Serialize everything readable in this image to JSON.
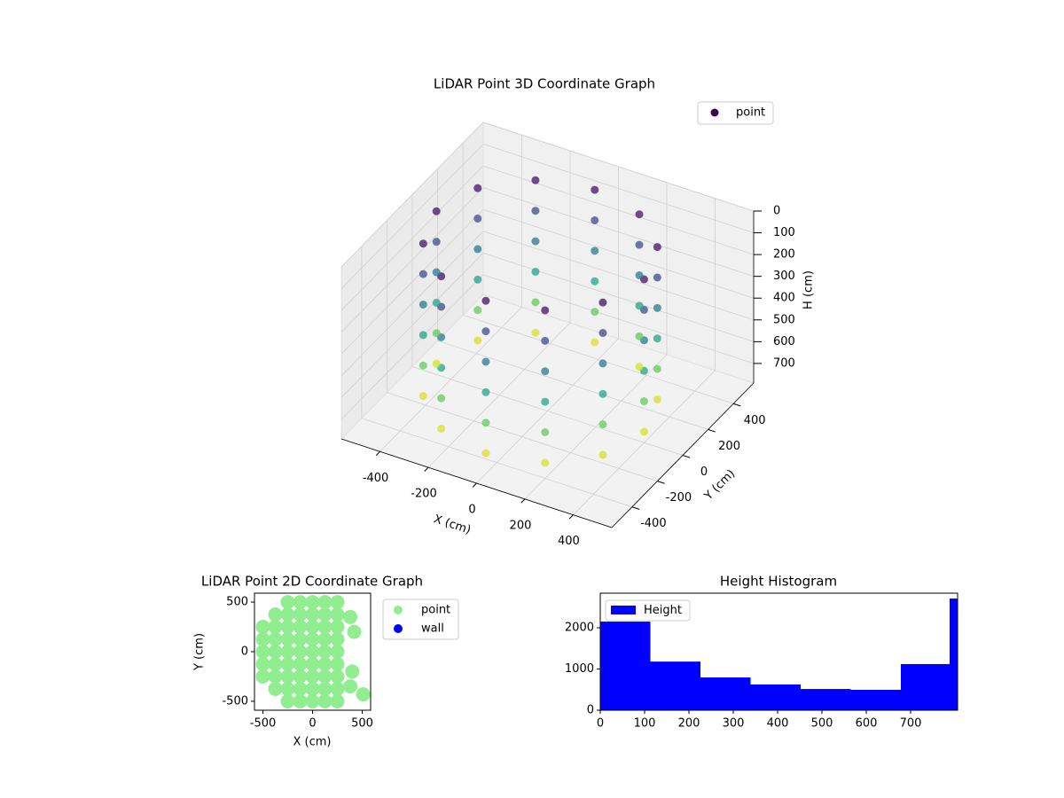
{
  "chart_data": [
    {
      "type": "scatter3d",
      "title": "LiDAR Point 3D Coordinate Graph",
      "xlabel": "X (cm)",
      "ylabel": "Y (cm)",
      "zlabel": "H (cm)",
      "legend": "upper right",
      "series_name": "point",
      "colormap": "viridis",
      "z_inverted": true,
      "xlim": [
        -560,
        560
      ],
      "ylim": [
        -560,
        560
      ],
      "zlim": [
        0,
        790
      ],
      "xticks": [
        -400,
        -200,
        0,
        200,
        400
      ],
      "yticks": [
        -400,
        -200,
        0,
        200,
        400
      ],
      "zticks": [
        0,
        100,
        200,
        300,
        400,
        500,
        600,
        700
      ],
      "x": [
        400,
        342,
        185,
        -30,
        -245,
        -402,
        -460,
        -402,
        -245,
        -30,
        185,
        342,
        400,
        342,
        185,
        -30,
        -245,
        -402,
        -460,
        -402,
        -245,
        -30,
        185,
        342,
        400,
        342,
        185,
        -30,
        -245,
        -402,
        -460,
        -402,
        -245,
        -30,
        185,
        342,
        400,
        342,
        185,
        -30,
        -245,
        -402,
        -460,
        -402,
        -245,
        -30,
        185,
        342,
        400,
        342,
        185,
        -30,
        -245,
        -402,
        -460,
        -402,
        -245,
        -30,
        185,
        342,
        400,
        342,
        185,
        -30,
        -245,
        -402,
        -460,
        -402,
        -245,
        -30,
        185,
        342
      ],
      "y": [
        0,
        215,
        372,
        430,
        372,
        215,
        0,
        -215,
        -372,
        -430,
        -372,
        -215,
        0,
        215,
        372,
        430,
        372,
        215,
        0,
        -215,
        -372,
        -430,
        -372,
        -215,
        0,
        215,
        372,
        430,
        372,
        215,
        0,
        -215,
        -372,
        -430,
        -372,
        -215,
        0,
        215,
        372,
        430,
        372,
        215,
        0,
        -215,
        -372,
        -430,
        -372,
        -215,
        0,
        215,
        372,
        430,
        372,
        215,
        0,
        -215,
        -372,
        -430,
        -372,
        -215,
        0,
        215,
        372,
        430,
        372,
        215,
        0,
        -215,
        -372,
        -430,
        -372,
        -215
      ],
      "h": [
        40,
        40,
        40,
        40,
        40,
        40,
        40,
        40,
        40,
        40,
        40,
        40,
        180,
        180,
        180,
        180,
        180,
        180,
        180,
        180,
        180,
        180,
        180,
        180,
        320,
        320,
        320,
        320,
        320,
        320,
        320,
        320,
        320,
        320,
        320,
        320,
        460,
        460,
        460,
        460,
        460,
        460,
        460,
        460,
        460,
        460,
        460,
        460,
        600,
        600,
        600,
        600,
        600,
        600,
        600,
        600,
        600,
        600,
        600,
        600,
        740,
        740,
        740,
        740,
        740,
        740,
        740,
        740,
        740,
        740,
        740,
        740
      ]
    },
    {
      "type": "scatter",
      "title": "LiDAR Point 2D Coordinate Graph",
      "xlabel": "X (cm)",
      "ylabel": "Y (cm)",
      "legend": "outside upper right",
      "xlim": [
        -585,
        585
      ],
      "ylim": [
        -590,
        590
      ],
      "xticks": [
        -500,
        0,
        500
      ],
      "yticks": [
        -500,
        0,
        500
      ],
      "series": [
        {
          "name": "point",
          "color": "#90ee90",
          "x": [
            -500,
            -500,
            -500,
            -500,
            -500,
            -375,
            -375,
            -375,
            -375,
            -375,
            -375,
            -375,
            -250,
            -250,
            -250,
            -250,
            -250,
            -250,
            -250,
            -250,
            -250,
            -125,
            -125,
            -125,
            -125,
            -125,
            -125,
            -125,
            -125,
            -125,
            0,
            0,
            0,
            0,
            0,
            0,
            0,
            0,
            0,
            125,
            125,
            125,
            125,
            125,
            125,
            125,
            125,
            125,
            250,
            250,
            250,
            250,
            250,
            250,
            250,
            250,
            250,
            380,
            420,
            400,
            380,
            510
          ],
          "y": [
            -250,
            -125,
            0,
            125,
            250,
            -375,
            -250,
            -125,
            0,
            125,
            250,
            375,
            -500,
            -375,
            -250,
            -125,
            0,
            125,
            250,
            375,
            500,
            -500,
            -375,
            -250,
            -125,
            0,
            125,
            250,
            375,
            500,
            -500,
            -375,
            -250,
            -125,
            0,
            125,
            250,
            375,
            500,
            -500,
            -375,
            -250,
            -125,
            0,
            125,
            250,
            375,
            500,
            -500,
            -375,
            -250,
            -125,
            0,
            125,
            250,
            375,
            500,
            350,
            200,
            -200,
            -350,
            -430
          ]
        },
        {
          "name": "wall",
          "color": "#0000ff",
          "x": [],
          "y": []
        }
      ]
    },
    {
      "type": "histogram",
      "title": "Height Histogram",
      "legend": "upper left",
      "series_name": "Height",
      "color": "#0000ff",
      "bins": [
        0,
        113,
        226,
        339,
        452,
        565,
        678,
        788,
        806
      ],
      "counts": [
        2150,
        1180,
        795,
        625,
        515,
        495,
        1120,
        2710
      ],
      "xlim": [
        0,
        806
      ],
      "ylim": [
        0,
        2840
      ],
      "xticks": [
        0,
        100,
        200,
        300,
        400,
        500,
        600,
        700
      ],
      "yticks": [
        0,
        1000,
        2000
      ]
    }
  ]
}
